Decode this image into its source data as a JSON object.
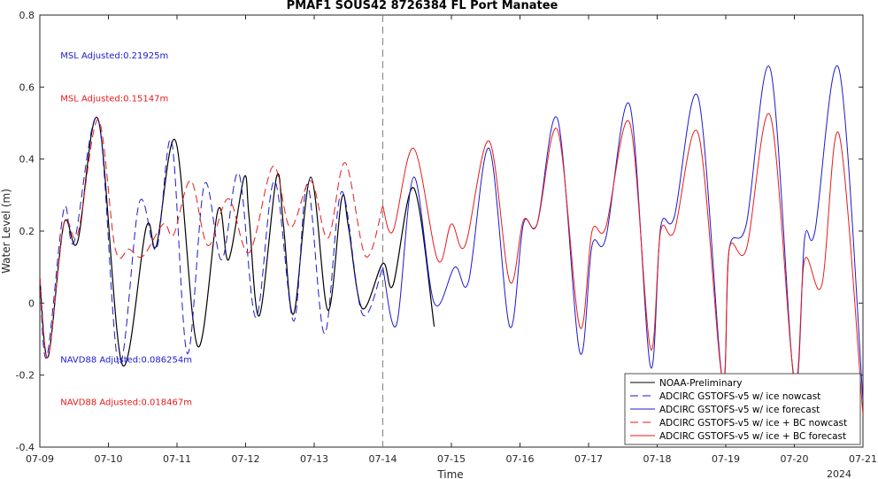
{
  "chart_data": {
    "type": "line",
    "title": "PMAF1 SOUS42 8726384 FL Port Manatee",
    "xlabel": "Time",
    "ylabel": "Water Level (m)",
    "xlim": [
      0,
      12
    ],
    "ylim": [
      -0.4,
      0.8
    ],
    "x_unit": "days from 07-09 (2024)",
    "x_ticks": [
      0,
      1,
      2,
      3,
      4,
      5,
      6,
      7,
      8,
      9,
      10,
      11,
      12
    ],
    "x_tick_labels": [
      "07-09",
      "07-10",
      "07-11",
      "07-12",
      "07-13",
      "07-14",
      "07-15",
      "07-16",
      "07-17",
      "07-18",
      "07-19",
      "07-20",
      "07-21"
    ],
    "x_secondary_label": "2024",
    "y_ticks": [
      -0.4,
      -0.2,
      0,
      0.2,
      0.4,
      0.6,
      0.8
    ],
    "y_tick_labels": [
      "-0.4",
      "-0.2",
      "0",
      "0.2",
      "0.4",
      "0.6",
      "0.8"
    ],
    "vline_x": 5,
    "grid": false,
    "legend_position": "bottom-right",
    "annotations": [
      {
        "text": "MSL Adjusted:0.21925m",
        "color": "#1a1acc",
        "x": 0.3,
        "y": 0.68
      },
      {
        "text": "MSL Adjusted:0.15147m",
        "color": "#e81a1a",
        "x": 0.3,
        "y": 0.56
      },
      {
        "text": "NAVD88 Adjusted:0.086254m",
        "color": "#1a1acc",
        "x": 0.3,
        "y": -0.165
      },
      {
        "text": "NAVD88 Adjusted:0.018467m",
        "color": "#e81a1a",
        "x": 0.3,
        "y": -0.283
      }
    ],
    "series": [
      {
        "name": "NOAA-Preliminary",
        "color": "#000000",
        "dash": "solid",
        "points": [
          [
            0,
            0.07
          ],
          [
            0.12,
            -0.15
          ],
          [
            0.35,
            0.22
          ],
          [
            0.55,
            0.17
          ],
          [
            0.85,
            0.51
          ],
          [
            1.2,
            -0.17
          ],
          [
            1.55,
            0.21
          ],
          [
            1.7,
            0.16
          ],
          [
            1.98,
            0.45
          ],
          [
            2.3,
            -0.12
          ],
          [
            2.6,
            0.26
          ],
          [
            2.75,
            0.12
          ],
          [
            2.98,
            0.35
          ],
          [
            3.05,
            0.24
          ],
          [
            3.2,
            -0.035
          ],
          [
            3.45,
            0.35
          ],
          [
            3.55,
            0.22
          ],
          [
            3.7,
            -0.03
          ],
          [
            3.95,
            0.35
          ],
          [
            4.2,
            -0.02
          ],
          [
            4.4,
            0.29
          ],
          [
            4.5,
            0.21
          ],
          [
            4.7,
            -0.015
          ],
          [
            5.0,
            0.11
          ],
          [
            5.15,
            0.05
          ],
          [
            5.45,
            0.32
          ],
          [
            5.75,
            -0.065
          ]
        ]
      },
      {
        "name": "ADCIRC GSTOFS-v5 w/ ice nowcast",
        "color": "#1a1acc",
        "dash": "dashed",
        "points": [
          [
            0,
            0.07
          ],
          [
            0.1,
            -0.15
          ],
          [
            0.35,
            0.26
          ],
          [
            0.5,
            0.17
          ],
          [
            0.85,
            0.51
          ],
          [
            1.15,
            -0.17
          ],
          [
            1.45,
            0.28
          ],
          [
            1.7,
            0.15
          ],
          [
            1.92,
            0.45
          ],
          [
            2.15,
            -0.14
          ],
          [
            2.4,
            0.33
          ],
          [
            2.65,
            0.12
          ],
          [
            2.9,
            0.36
          ],
          [
            3.15,
            -0.04
          ],
          [
            3.42,
            0.34
          ],
          [
            3.7,
            -0.05
          ],
          [
            3.9,
            0.33
          ],
          [
            4.15,
            -0.085
          ],
          [
            4.4,
            0.31
          ],
          [
            4.7,
            -0.03
          ],
          [
            5.0,
            0.1
          ]
        ]
      },
      {
        "name": "ADCIRC GSTOFS-v5 w/ ice forecast",
        "color": "#1a1acc",
        "dash": "solid",
        "points": [
          [
            5.0,
            0.1
          ],
          [
            5.2,
            -0.06
          ],
          [
            5.45,
            0.35
          ],
          [
            5.75,
            0.0
          ],
          [
            6.05,
            0.1
          ],
          [
            6.25,
            0.06
          ],
          [
            6.55,
            0.43
          ],
          [
            6.85,
            -0.065
          ],
          [
            7.05,
            0.22
          ],
          [
            7.25,
            0.22
          ],
          [
            7.55,
            0.51
          ],
          [
            7.87,
            -0.135
          ],
          [
            8.05,
            0.16
          ],
          [
            8.25,
            0.18
          ],
          [
            8.6,
            0.55
          ],
          [
            8.9,
            -0.175
          ],
          [
            9.05,
            0.21
          ],
          [
            9.25,
            0.24
          ],
          [
            9.6,
            0.57
          ],
          [
            9.95,
            -0.21
          ],
          [
            10.05,
            0.15
          ],
          [
            10.3,
            0.22
          ],
          [
            10.65,
            0.65
          ],
          [
            11.0,
            -0.22
          ],
          [
            11.15,
            0.18
          ],
          [
            11.3,
            0.2
          ],
          [
            11.65,
            0.65
          ],
          [
            12.0,
            -0.27
          ]
        ]
      },
      {
        "name": "ADCIRC GSTOFS-v5 w/ ice + BC nowcast",
        "color": "#e81a1a",
        "dash": "dashed",
        "points": [
          [
            0,
            0.07
          ],
          [
            0.12,
            -0.15
          ],
          [
            0.35,
            0.22
          ],
          [
            0.55,
            0.19
          ],
          [
            0.85,
            0.51
          ],
          [
            1.1,
            0.15
          ],
          [
            1.3,
            0.15
          ],
          [
            1.5,
            0.13
          ],
          [
            1.8,
            0.22
          ],
          [
            1.95,
            0.19
          ],
          [
            2.2,
            0.34
          ],
          [
            2.45,
            0.16
          ],
          [
            2.75,
            0.29
          ],
          [
            3.05,
            0.14
          ],
          [
            3.4,
            0.38
          ],
          [
            3.65,
            0.21
          ],
          [
            3.95,
            0.34
          ],
          [
            4.2,
            0.18
          ],
          [
            4.45,
            0.39
          ],
          [
            4.75,
            0.13
          ],
          [
            5.0,
            0.27
          ]
        ]
      },
      {
        "name": "ADCIRC GSTOFS-v5 w/ ice + BC forecast",
        "color": "#e81a1a",
        "dash": "solid",
        "points": [
          [
            5.0,
            0.27
          ],
          [
            5.15,
            0.2
          ],
          [
            5.45,
            0.43
          ],
          [
            5.8,
            0.12
          ],
          [
            6.0,
            0.22
          ],
          [
            6.2,
            0.16
          ],
          [
            6.55,
            0.45
          ],
          [
            6.85,
            0.06
          ],
          [
            7.05,
            0.23
          ],
          [
            7.25,
            0.22
          ],
          [
            7.55,
            0.48
          ],
          [
            7.87,
            -0.065
          ],
          [
            8.05,
            0.2
          ],
          [
            8.25,
            0.21
          ],
          [
            8.6,
            0.5
          ],
          [
            8.9,
            -0.125
          ],
          [
            9.05,
            0.2
          ],
          [
            9.25,
            0.2
          ],
          [
            9.6,
            0.47
          ],
          [
            9.95,
            -0.21
          ],
          [
            10.05,
            0.15
          ],
          [
            10.3,
            0.15
          ],
          [
            10.65,
            0.52
          ],
          [
            11.0,
            -0.21
          ],
          [
            11.15,
            0.12
          ],
          [
            11.4,
            0.05
          ],
          [
            11.65,
            0.47
          ],
          [
            12.0,
            -0.31
          ]
        ]
      }
    ]
  }
}
